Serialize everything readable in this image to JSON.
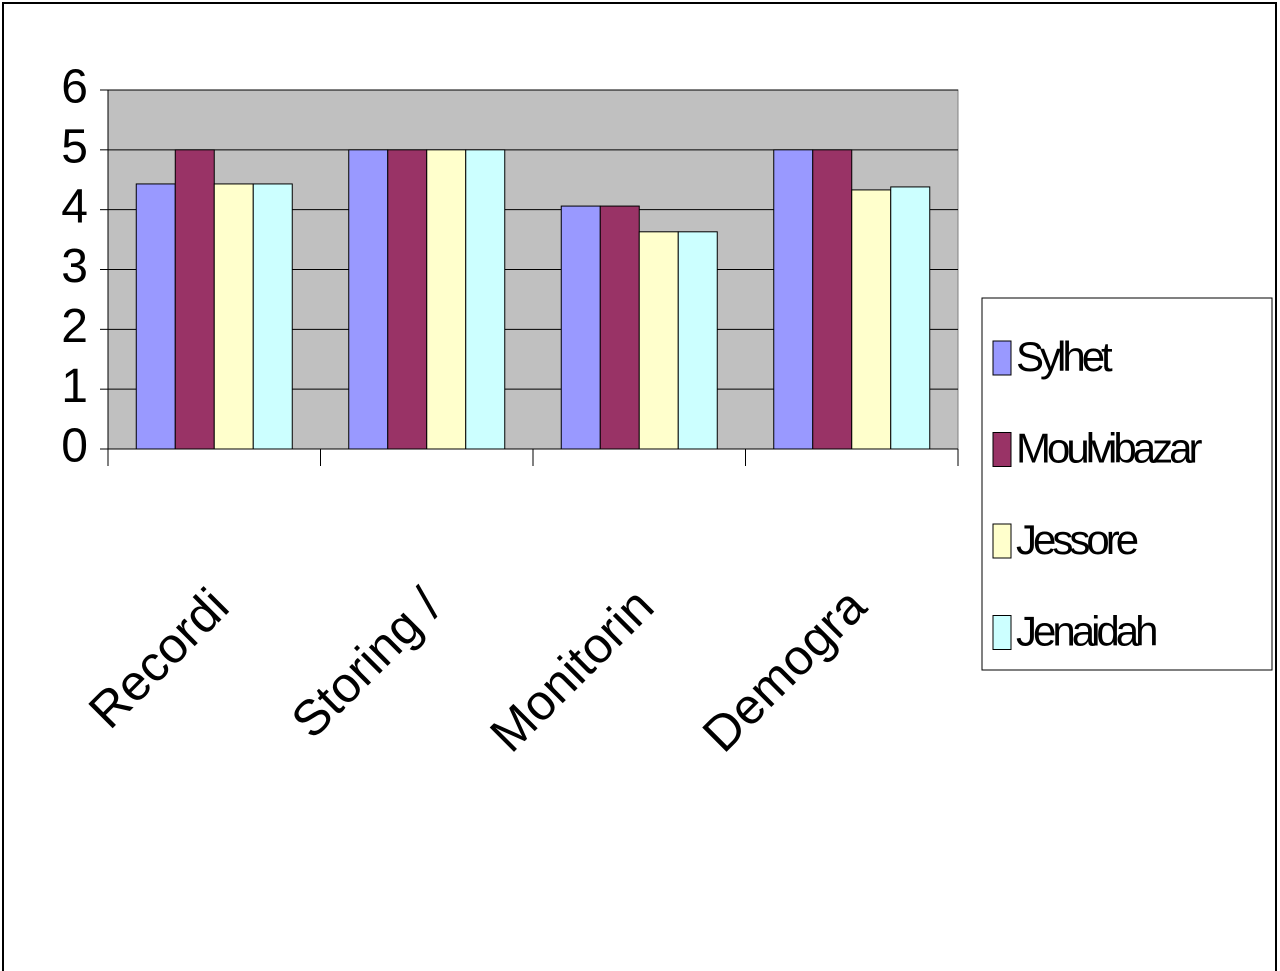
{
  "chart_data": {
    "type": "bar",
    "categories": [
      "Recordi",
      "Storing /",
      "Monitorin",
      "Demogra"
    ],
    "series": [
      {
        "name": "Sylhet",
        "color": "#9999ff",
        "values": [
          4.43,
          5,
          4.06,
          5
        ]
      },
      {
        "name": "Moulvibazar",
        "color": "#993366",
        "values": [
          5,
          5,
          4.06,
          5
        ]
      },
      {
        "name": "Jessore",
        "color": "#ffffcc",
        "values": [
          4.43,
          5,
          3.63,
          4.33
        ]
      },
      {
        "name": "Jenaidah",
        "color": "#ccffff",
        "values": [
          4.43,
          5,
          3.63,
          4.38
        ]
      }
    ],
    "ylim": [
      0,
      6
    ],
    "yticks": [
      0,
      1,
      2,
      3,
      4,
      5,
      6
    ],
    "grid": true,
    "legend": "right"
  }
}
